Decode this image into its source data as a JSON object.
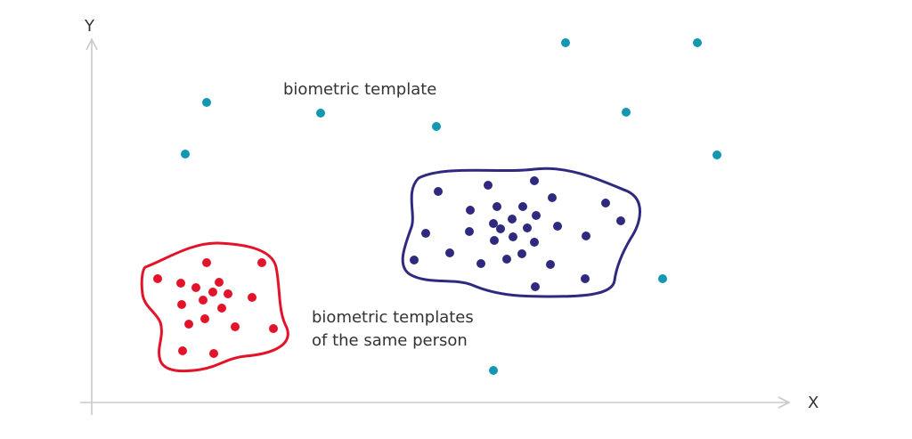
{
  "axes": {
    "x_label": "X",
    "y_label": "Y",
    "color": "#c9c9c9"
  },
  "captions": {
    "single": "biometric template",
    "group_line1": "biometric templates",
    "group_line2": "of the same person"
  },
  "colors": {
    "scattered": "#1497b3",
    "red_cluster": "#e3142a",
    "blue_cluster": "#2f2a80"
  }
}
